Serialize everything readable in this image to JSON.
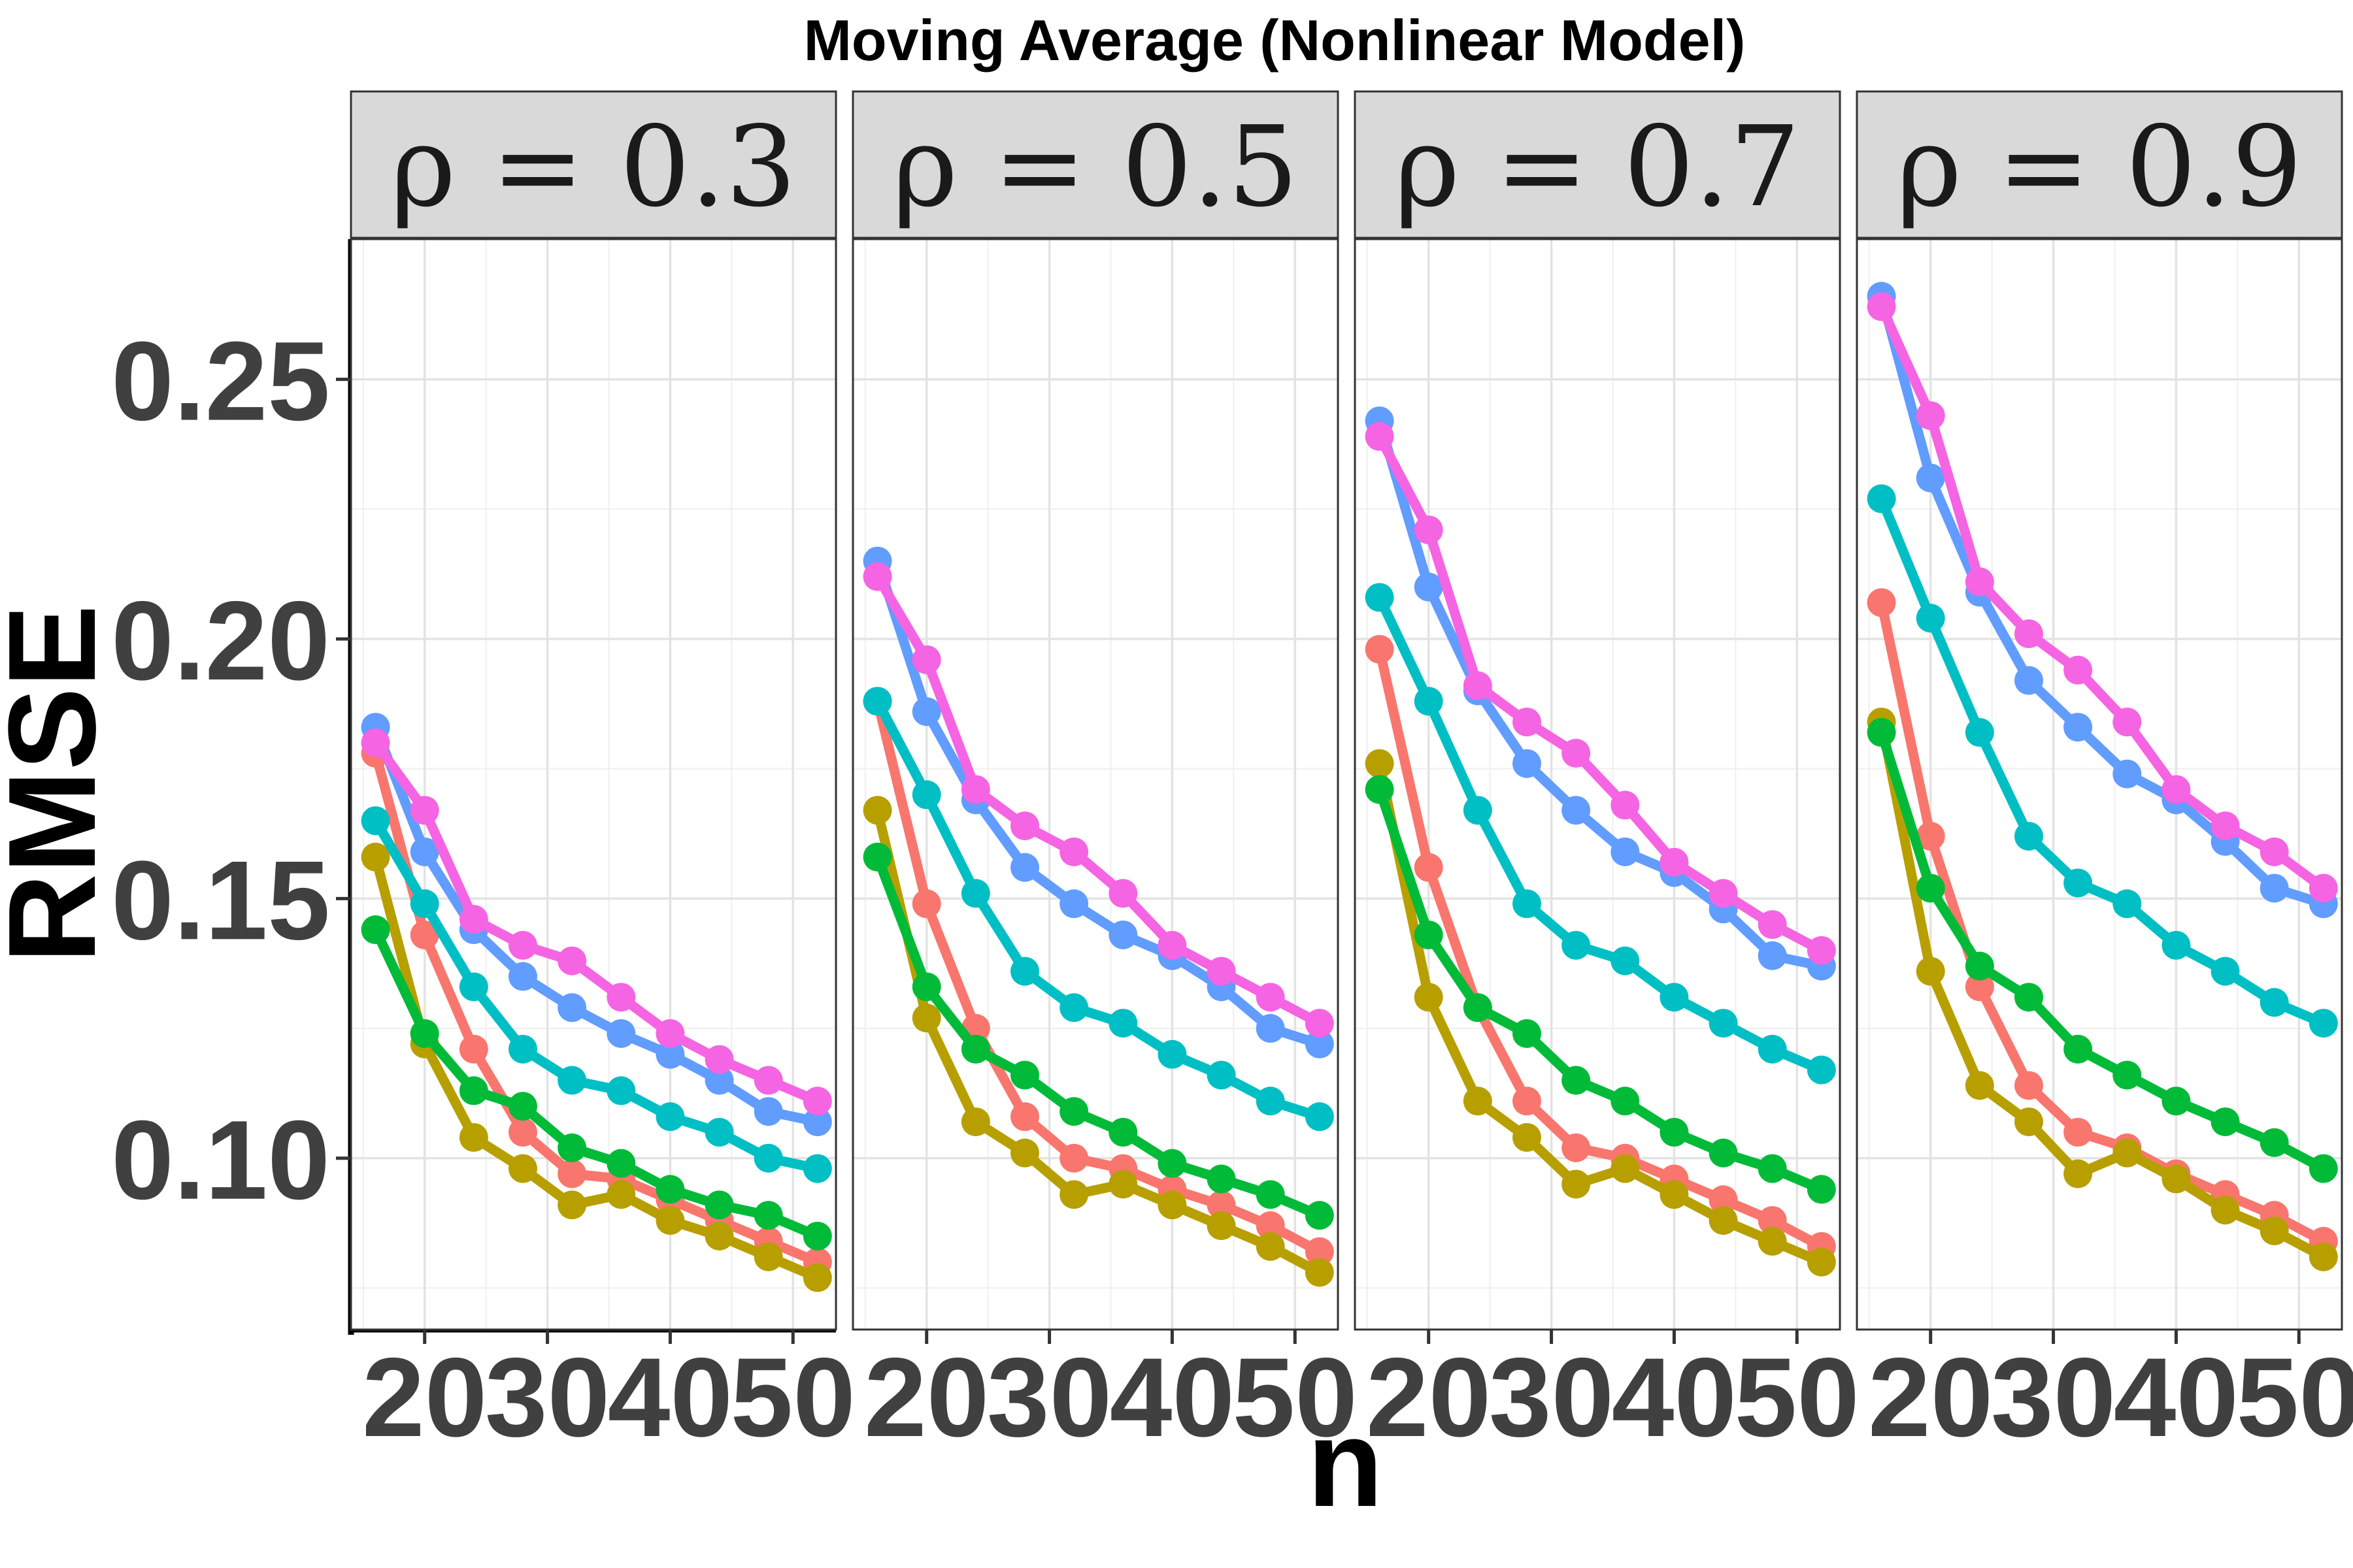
{
  "chart_data": {
    "type": "line",
    "title": "Moving Average (Nonlinear Model)",
    "xlabel": "n",
    "ylabel": "RMSE",
    "x": [
      16,
      20,
      24,
      28,
      32,
      36,
      40,
      44,
      48,
      52
    ],
    "xlim": [
      14,
      53.5
    ],
    "ylim": [
      0.067,
      0.277
    ],
    "xticks": [
      20,
      30,
      40,
      50
    ],
    "xtick_labels": [
      "20",
      "30",
      "40",
      "50"
    ],
    "yticks": [
      0.1,
      0.15,
      0.2,
      0.25
    ],
    "ytick_labels": [
      "0.10",
      "0.15",
      "0.20",
      "0.25"
    ],
    "grid": true,
    "legend": "none",
    "panels": [
      {
        "label": "ρ = 0.3",
        "series": [
          {
            "name": "series-red",
            "color": "#F8766D",
            "values": [
              0.178,
              0.143,
              0.121,
              0.105,
              0.097,
              0.096,
              0.092,
              0.088,
              0.084,
              0.08
            ]
          },
          {
            "name": "series-olive",
            "color": "#B79F00",
            "values": [
              0.158,
              0.122,
              0.104,
              0.098,
              0.091,
              0.093,
              0.088,
              0.085,
              0.081,
              0.077
            ]
          },
          {
            "name": "series-green",
            "color": "#00BA38",
            "values": [
              0.144,
              0.124,
              0.113,
              0.11,
              0.102,
              0.099,
              0.094,
              0.091,
              0.089,
              0.085
            ]
          },
          {
            "name": "series-teal",
            "color": "#00BFC4",
            "values": [
              0.165,
              0.149,
              0.133,
              0.121,
              0.115,
              0.113,
              0.108,
              0.105,
              0.1,
              0.098
            ]
          },
          {
            "name": "series-blue",
            "color": "#619CFF",
            "values": [
              0.183,
              0.159,
              0.144,
              0.135,
              0.129,
              0.124,
              0.12,
              0.115,
              0.109,
              0.107
            ]
          },
          {
            "name": "series-magenta",
            "color": "#F564E3",
            "values": [
              0.18,
              0.167,
              0.146,
              0.141,
              0.138,
              0.131,
              0.124,
              0.119,
              0.115,
              0.111
            ]
          }
        ]
      },
      {
        "label": "ρ = 0.5",
        "series": [
          {
            "name": "series-red",
            "color": "#F8766D",
            "values": [
              0.188,
              0.149,
              0.125,
              0.108,
              0.1,
              0.098,
              0.094,
              0.091,
              0.087,
              0.082
            ]
          },
          {
            "name": "series-olive",
            "color": "#B79F00",
            "values": [
              0.167,
              0.127,
              0.107,
              0.101,
              0.093,
              0.095,
              0.091,
              0.087,
              0.083,
              0.078
            ]
          },
          {
            "name": "series-green",
            "color": "#00BA38",
            "values": [
              0.158,
              0.133,
              0.121,
              0.116,
              0.109,
              0.105,
              0.099,
              0.096,
              0.093,
              0.089
            ]
          },
          {
            "name": "series-teal",
            "color": "#00BFC4",
            "values": [
              0.188,
              0.17,
              0.151,
              0.136,
              0.129,
              0.126,
              0.12,
              0.116,
              0.111,
              0.108
            ]
          },
          {
            "name": "series-blue",
            "color": "#619CFF",
            "values": [
              0.215,
              0.186,
              0.169,
              0.156,
              0.149,
              0.143,
              0.139,
              0.133,
              0.125,
              0.122
            ]
          },
          {
            "name": "series-magenta",
            "color": "#F564E3",
            "values": [
              0.212,
              0.196,
              0.171,
              0.164,
              0.159,
              0.151,
              0.141,
              0.136,
              0.131,
              0.126
            ]
          }
        ]
      },
      {
        "label": "ρ = 0.7",
        "series": [
          {
            "name": "series-red",
            "color": "#F8766D",
            "values": [
              0.198,
              0.156,
              0.129,
              0.111,
              0.102,
              0.1,
              0.096,
              0.092,
              0.088,
              0.083
            ]
          },
          {
            "name": "series-olive",
            "color": "#B79F00",
            "values": [
              0.176,
              0.131,
              0.111,
              0.104,
              0.095,
              0.098,
              0.093,
              0.088,
              0.084,
              0.08
            ]
          },
          {
            "name": "series-green",
            "color": "#00BA38",
            "values": [
              0.171,
              0.143,
              0.129,
              0.124,
              0.115,
              0.111,
              0.105,
              0.101,
              0.098,
              0.094
            ]
          },
          {
            "name": "series-teal",
            "color": "#00BFC4",
            "values": [
              0.208,
              0.188,
              0.167,
              0.149,
              0.141,
              0.138,
              0.131,
              0.126,
              0.121,
              0.117
            ]
          },
          {
            "name": "series-blue",
            "color": "#619CFF",
            "values": [
              0.242,
              0.21,
              0.19,
              0.176,
              0.167,
              0.159,
              0.155,
              0.148,
              0.139,
              0.137
            ]
          },
          {
            "name": "series-magenta",
            "color": "#F564E3",
            "values": [
              0.239,
              0.221,
              0.191,
              0.184,
              0.178,
              0.168,
              0.157,
              0.151,
              0.145,
              0.14
            ]
          }
        ]
      },
      {
        "label": "ρ = 0.9",
        "series": [
          {
            "name": "series-red",
            "color": "#F8766D",
            "values": [
              0.207,
              0.162,
              0.133,
              0.114,
              0.105,
              0.102,
              0.097,
              0.093,
              0.089,
              0.084
            ]
          },
          {
            "name": "series-olive",
            "color": "#B79F00",
            "values": [
              0.184,
              0.136,
              0.114,
              0.107,
              0.097,
              0.101,
              0.096,
              0.09,
              0.086,
              0.081
            ]
          },
          {
            "name": "series-green",
            "color": "#00BA38",
            "values": [
              0.182,
              0.152,
              0.137,
              0.131,
              0.121,
              0.116,
              0.111,
              0.107,
              0.103,
              0.098
            ]
          },
          {
            "name": "series-teal",
            "color": "#00BFC4",
            "values": [
              0.227,
              0.204,
              0.182,
              0.162,
              0.153,
              0.149,
              0.141,
              0.136,
              0.13,
              0.126
            ]
          },
          {
            "name": "series-blue",
            "color": "#619CFF",
            "values": [
              0.266,
              0.231,
              0.209,
              0.192,
              0.183,
              0.174,
              0.169,
              0.161,
              0.152,
              0.149
            ]
          },
          {
            "name": "series-magenta",
            "color": "#F564E3",
            "values": [
              0.264,
              0.243,
              0.211,
              0.201,
              0.194,
              0.184,
              0.171,
              0.164,
              0.159,
              0.152
            ]
          }
        ]
      }
    ]
  }
}
